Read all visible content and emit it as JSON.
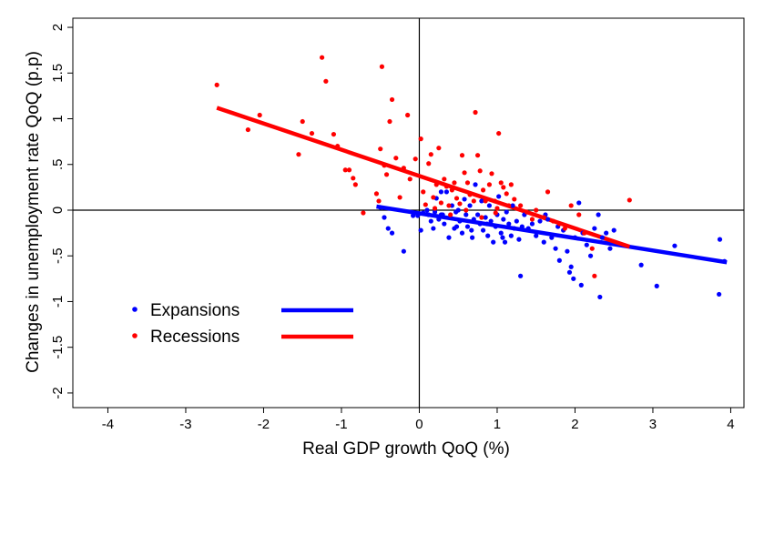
{
  "chart_data": {
    "type": "scatter",
    "title": "",
    "xlabel": "Real GDP growth QoQ (%)",
    "ylabel": "Changes in unemployment rate QoQ (p.p)",
    "xlim": [
      -4.45,
      4.17
    ],
    "ylim": [
      -2.16,
      2.1
    ],
    "x_ticks": [
      -4,
      -3,
      -2,
      -1,
      0,
      1,
      2,
      3,
      4
    ],
    "x_tick_labels": [
      "-4",
      "-3",
      "-2",
      "-1",
      "0",
      "1",
      "2",
      "3",
      "4"
    ],
    "y_ticks": [
      2,
      1.5,
      1,
      0.5,
      0,
      -0.5,
      -1,
      -1.5,
      -2
    ],
    "y_tick_labels": [
      "2",
      "1.5",
      "1",
      ".5",
      "0",
      "-.5",
      "-1",
      "-1.5",
      "-2"
    ],
    "grid": false,
    "reference_lines": {
      "x": 0,
      "y": 0
    },
    "legend_placement": "lower-left",
    "series": [
      {
        "name": "Expansions",
        "color": "#0000ff",
        "points": [
          [
            -0.5,
            0.03
          ],
          [
            -0.45,
            -0.08
          ],
          [
            -0.4,
            -0.2
          ],
          [
            -0.35,
            -0.25
          ],
          [
            -0.2,
            -0.45
          ],
          [
            -0.08,
            -0.06
          ],
          [
            -0.02,
            -0.06
          ],
          [
            0.02,
            -0.22
          ],
          [
            0.05,
            -0.03
          ],
          [
            0.1,
            0.0
          ],
          [
            0.12,
            -0.05
          ],
          [
            0.15,
            -0.12
          ],
          [
            0.18,
            -0.2
          ],
          [
            0.2,
            -0.02
          ],
          [
            0.22,
            0.13
          ],
          [
            0.25,
            -0.1
          ],
          [
            0.28,
            0.2
          ],
          [
            0.3,
            -0.05
          ],
          [
            0.32,
            -0.15
          ],
          [
            0.35,
            0.2
          ],
          [
            0.38,
            -0.3
          ],
          [
            0.4,
            -0.08
          ],
          [
            0.42,
            0.05
          ],
          [
            0.45,
            -0.2
          ],
          [
            0.47,
            -0.02
          ],
          [
            0.5,
            0.0
          ],
          [
            0.52,
            -0.12
          ],
          [
            0.55,
            -0.25
          ],
          [
            0.58,
            0.12
          ],
          [
            0.6,
            -0.05
          ],
          [
            0.62,
            -0.18
          ],
          [
            0.65,
            0.05
          ],
          [
            0.68,
            -0.3
          ],
          [
            0.7,
            -0.1
          ],
          [
            0.72,
            0.28
          ],
          [
            0.75,
            -0.05
          ],
          [
            0.78,
            -0.15
          ],
          [
            0.8,
            0.1
          ],
          [
            0.82,
            -0.22
          ],
          [
            0.85,
            -0.08
          ],
          [
            0.88,
            -0.28
          ],
          [
            0.9,
            0.05
          ],
          [
            0.92,
            -0.12
          ],
          [
            0.95,
            -0.35
          ],
          [
            0.98,
            -0.18
          ],
          [
            1.0,
            -0.05
          ],
          [
            1.02,
            0.15
          ],
          [
            1.05,
            -0.25
          ],
          [
            1.08,
            -0.1
          ],
          [
            1.1,
            -0.35
          ],
          [
            1.12,
            -0.02
          ],
          [
            1.15,
            -0.15
          ],
          [
            1.18,
            -0.28
          ],
          [
            1.2,
            0.05
          ],
          [
            1.22,
            -0.2
          ],
          [
            1.25,
            -0.12
          ],
          [
            1.28,
            -0.32
          ],
          [
            1.3,
            -0.72
          ],
          [
            1.35,
            -0.05
          ],
          [
            1.4,
            -0.2
          ],
          [
            1.45,
            -0.15
          ],
          [
            1.5,
            -0.28
          ],
          [
            1.55,
            -0.12
          ],
          [
            1.6,
            -0.35
          ],
          [
            1.65,
            -0.1
          ],
          [
            1.7,
            -0.3
          ],
          [
            1.75,
            -0.42
          ],
          [
            1.78,
            -0.18
          ],
          [
            1.8,
            -0.55
          ],
          [
            1.85,
            -0.22
          ],
          [
            1.9,
            -0.45
          ],
          [
            1.95,
            -0.62
          ],
          [
            1.98,
            -0.75
          ],
          [
            2.0,
            -0.3
          ],
          [
            2.05,
            0.08
          ],
          [
            2.08,
            -0.82
          ],
          [
            2.1,
            -0.25
          ],
          [
            2.15,
            -0.38
          ],
          [
            2.2,
            -0.5
          ],
          [
            2.25,
            -0.2
          ],
          [
            2.3,
            -0.05
          ],
          [
            2.32,
            -0.95
          ],
          [
            2.35,
            -0.3
          ],
          [
            2.4,
            -0.25
          ],
          [
            2.45,
            -0.42
          ],
          [
            2.5,
            -0.22
          ],
          [
            2.85,
            -0.6
          ],
          [
            3.05,
            -0.83
          ],
          [
            3.28,
            -0.39
          ],
          [
            3.85,
            -0.92
          ],
          [
            3.86,
            -0.32
          ],
          [
            3.92,
            -0.56
          ],
          [
            0.28,
            -0.05
          ],
          [
            0.48,
            -0.18
          ],
          [
            0.67,
            -0.22
          ],
          [
            0.87,
            -0.15
          ],
          [
            1.07,
            -0.3
          ],
          [
            1.32,
            -0.18
          ],
          [
            1.62,
            -0.05
          ],
          [
            1.93,
            -0.68
          ]
        ],
        "fit": {
          "x": [
            -0.55,
            3.95
          ],
          "y": [
            0.04,
            -0.57
          ]
        }
      },
      {
        "name": "Recessions",
        "color": "#ff0000",
        "points": [
          [
            -2.6,
            1.37
          ],
          [
            -2.2,
            0.88
          ],
          [
            -2.05,
            1.04
          ],
          [
            -1.55,
            0.61
          ],
          [
            -1.5,
            0.97
          ],
          [
            -1.38,
            0.84
          ],
          [
            -1.25,
            1.67
          ],
          [
            -1.2,
            1.41
          ],
          [
            -1.1,
            0.83
          ],
          [
            -1.05,
            0.7
          ],
          [
            -0.95,
            0.44
          ],
          [
            -0.9,
            0.44
          ],
          [
            -0.85,
            0.35
          ],
          [
            -0.82,
            0.28
          ],
          [
            -0.72,
            -0.03
          ],
          [
            -0.55,
            0.18
          ],
          [
            -0.52,
            0.1
          ],
          [
            -0.5,
            0.67
          ],
          [
            -0.48,
            1.57
          ],
          [
            -0.45,
            0.49
          ],
          [
            -0.42,
            0.39
          ],
          [
            -0.38,
            0.97
          ],
          [
            -0.35,
            1.21
          ],
          [
            -0.3,
            0.57
          ],
          [
            -0.25,
            0.14
          ],
          [
            -0.2,
            0.46
          ],
          [
            -0.15,
            1.04
          ],
          [
            -0.12,
            0.34
          ],
          [
            -0.05,
            0.56
          ],
          [
            0.02,
            0.78
          ],
          [
            0.05,
            0.2
          ],
          [
            0.08,
            0.06
          ],
          [
            0.12,
            0.51
          ],
          [
            0.15,
            0.61
          ],
          [
            0.18,
            0.14
          ],
          [
            0.22,
            0.28
          ],
          [
            0.25,
            0.68
          ],
          [
            0.28,
            0.08
          ],
          [
            0.32,
            0.34
          ],
          [
            0.35,
            0.26
          ],
          [
            0.38,
            0.05
          ],
          [
            0.42,
            0.22
          ],
          [
            0.45,
            0.3
          ],
          [
            0.48,
            0.13
          ],
          [
            0.52,
            0.07
          ],
          [
            0.55,
            0.6
          ],
          [
            0.58,
            0.41
          ],
          [
            0.62,
            0.3
          ],
          [
            0.65,
            0.17
          ],
          [
            0.7,
            0.1
          ],
          [
            0.72,
            1.07
          ],
          [
            0.75,
            0.6
          ],
          [
            0.78,
            0.43
          ],
          [
            0.82,
            0.22
          ],
          [
            0.85,
            0.1
          ],
          [
            0.9,
            0.28
          ],
          [
            0.93,
            0.4
          ],
          [
            0.97,
            0.1
          ],
          [
            1.02,
            0.84
          ],
          [
            1.05,
            0.3
          ],
          [
            1.08,
            0.25
          ],
          [
            1.12,
            0.18
          ],
          [
            1.18,
            0.28
          ],
          [
            1.22,
            0.12
          ],
          [
            1.3,
            0.05
          ],
          [
            1.38,
            -0.02
          ],
          [
            1.45,
            -0.1
          ],
          [
            1.5,
            0.0
          ],
          [
            1.6,
            -0.08
          ],
          [
            1.65,
            0.2
          ],
          [
            1.72,
            -0.12
          ],
          [
            1.8,
            -0.15
          ],
          [
            1.87,
            -0.2
          ],
          [
            1.95,
            0.05
          ],
          [
            2.05,
            -0.05
          ],
          [
            2.12,
            -0.25
          ],
          [
            2.22,
            -0.42
          ],
          [
            2.25,
            -0.72
          ],
          [
            2.7,
            0.11
          ],
          [
            0.6,
            0.0
          ],
          [
            0.4,
            -0.05
          ],
          [
            0.2,
            0.02
          ],
          [
            0.98,
            -0.03
          ],
          [
            1.15,
            0.05
          ],
          [
            0.8,
            -0.08
          ],
          [
            1.0,
            0.02
          ]
        ],
        "fit": {
          "x": [
            -2.6,
            2.7
          ],
          "y": [
            1.12,
            -0.4
          ]
        }
      }
    ]
  }
}
